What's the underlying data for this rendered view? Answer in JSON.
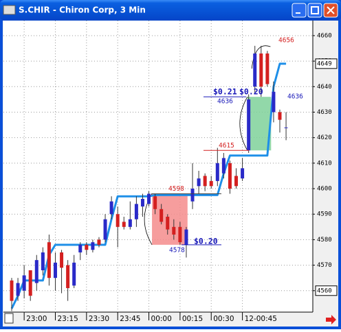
{
  "window": {
    "title": "S.CHIR - Chiron Corp, 3 Min"
  },
  "chart_data": {
    "type": "candlestick",
    "categories": [
      null,
      null,
      "23:00",
      null,
      null,
      null,
      null,
      "23:15",
      null,
      null,
      null,
      null,
      "23:30",
      null,
      null,
      null,
      null,
      "23:45",
      null,
      null,
      null,
      null,
      "00:00",
      null,
      null,
      null,
      null,
      "00:15",
      null,
      null,
      null,
      null,
      "00:30",
      null,
      null,
      null,
      null,
      "12-00:45",
      null,
      null,
      null,
      null,
      null,
      null,
      null
    ],
    "open": [
      4564,
      4558,
      4560,
      4568,
      4563,
      4568,
      4579,
      4565,
      4575,
      4570,
      4562,
      4575,
      4578,
      4576,
      4580,
      4580,
      4590,
      4590,
      4587,
      4585,
      4588,
      4593,
      4594,
      4597,
      4592,
      4589,
      4585,
      4585,
      4578,
      4595,
      4601,
      4605,
      4603,
      4603,
      4606,
      4610,
      4605,
      4604,
      4615,
      4640,
      4653,
      4653,
      4630,
      4630,
      4624
    ],
    "high": [
      4565,
      4565,
      4570,
      4568,
      4574,
      4577,
      4582,
      4575,
      4576,
      4572,
      4574,
      4579,
      4579,
      4580,
      4581,
      4590,
      4597,
      4593,
      4589,
      4595,
      4597,
      4598,
      4599,
      4598,
      4594,
      4590,
      4588,
      4587,
      4585,
      4610,
      4607,
      4606,
      4605,
      4616,
      4614,
      4611,
      4608,
      4612,
      4637,
      4656,
      4656,
      4654,
      4642,
      4631,
      4630
    ],
    "low": [
      4552,
      4556,
      4557,
      4556,
      4560,
      4566,
      4562,
      4560,
      4559,
      4556,
      4561,
      4572,
      4574,
      4575,
      4577,
      4579,
      4588,
      4577,
      4584,
      4584,
      4585,
      4589,
      4593,
      4590,
      4586,
      4582,
      4580,
      4578,
      4573,
      4592,
      4598,
      4599,
      4600,
      4601,
      4604,
      4598,
      4600,
      4603,
      4614,
      4637,
      4636,
      4640,
      4626,
      4622,
      4619
    ],
    "close": [
      4556,
      4563,
      4566,
      4558,
      4572,
      4575,
      4565,
      4571,
      4569,
      4561,
      4571,
      4578,
      4576,
      4579,
      4578,
      4588,
      4595,
      4585,
      4585,
      4588,
      4594,
      4596,
      4598,
      4592,
      4587,
      4584,
      4582,
      4579,
      4584,
      4600,
      4604,
      4601,
      4601,
      4610,
      4612,
      4600,
      4601,
      4608,
      4635,
      4653,
      4640,
      4641,
      4638,
      4627,
      4624
    ],
    "up_color": "#2a2ac8",
    "down_color": "#d42020",
    "overlay": {
      "color": "#1e8fe8",
      "values": [
        4553,
        4558,
        4564,
        4564,
        4564,
        4564,
        4574,
        4578,
        4578,
        4578,
        4578,
        4578,
        4578,
        4578,
        4578,
        4578,
        4588,
        4597,
        4597,
        4597,
        4597,
        4597,
        4597,
        4597.5,
        4597.5,
        4597.5,
        4597.5,
        4597.5,
        4597.5,
        4597.5,
        4597.5,
        4597.5,
        4597.5,
        4597.5,
        4606,
        4613,
        4613,
        4613,
        4613,
        4613,
        4613,
        4613,
        4640,
        4649,
        4649
      ]
    },
    "ylim": [
      4551.6,
      4665.9
    ],
    "yticks": [
      4560,
      4570,
      4580,
      4590,
      4600,
      4610,
      4620,
      4630,
      4640,
      4650,
      4660
    ],
    "grid": true,
    "last_price": 4649,
    "ranges": [
      {
        "high": 4598,
        "low": 4578,
        "change_labels": [
          "$0.20"
        ],
        "color": "#f58c8c"
      },
      {
        "high": 4636,
        "low": 4615,
        "change_labels": [
          "$0.21",
          "$0.20"
        ],
        "color": "#7fd19a"
      }
    ],
    "price_labels": [
      {
        "value": 4656,
        "color": "#d42020"
      },
      {
        "value": 4636,
        "color": "#1818b8"
      }
    ]
  }
}
